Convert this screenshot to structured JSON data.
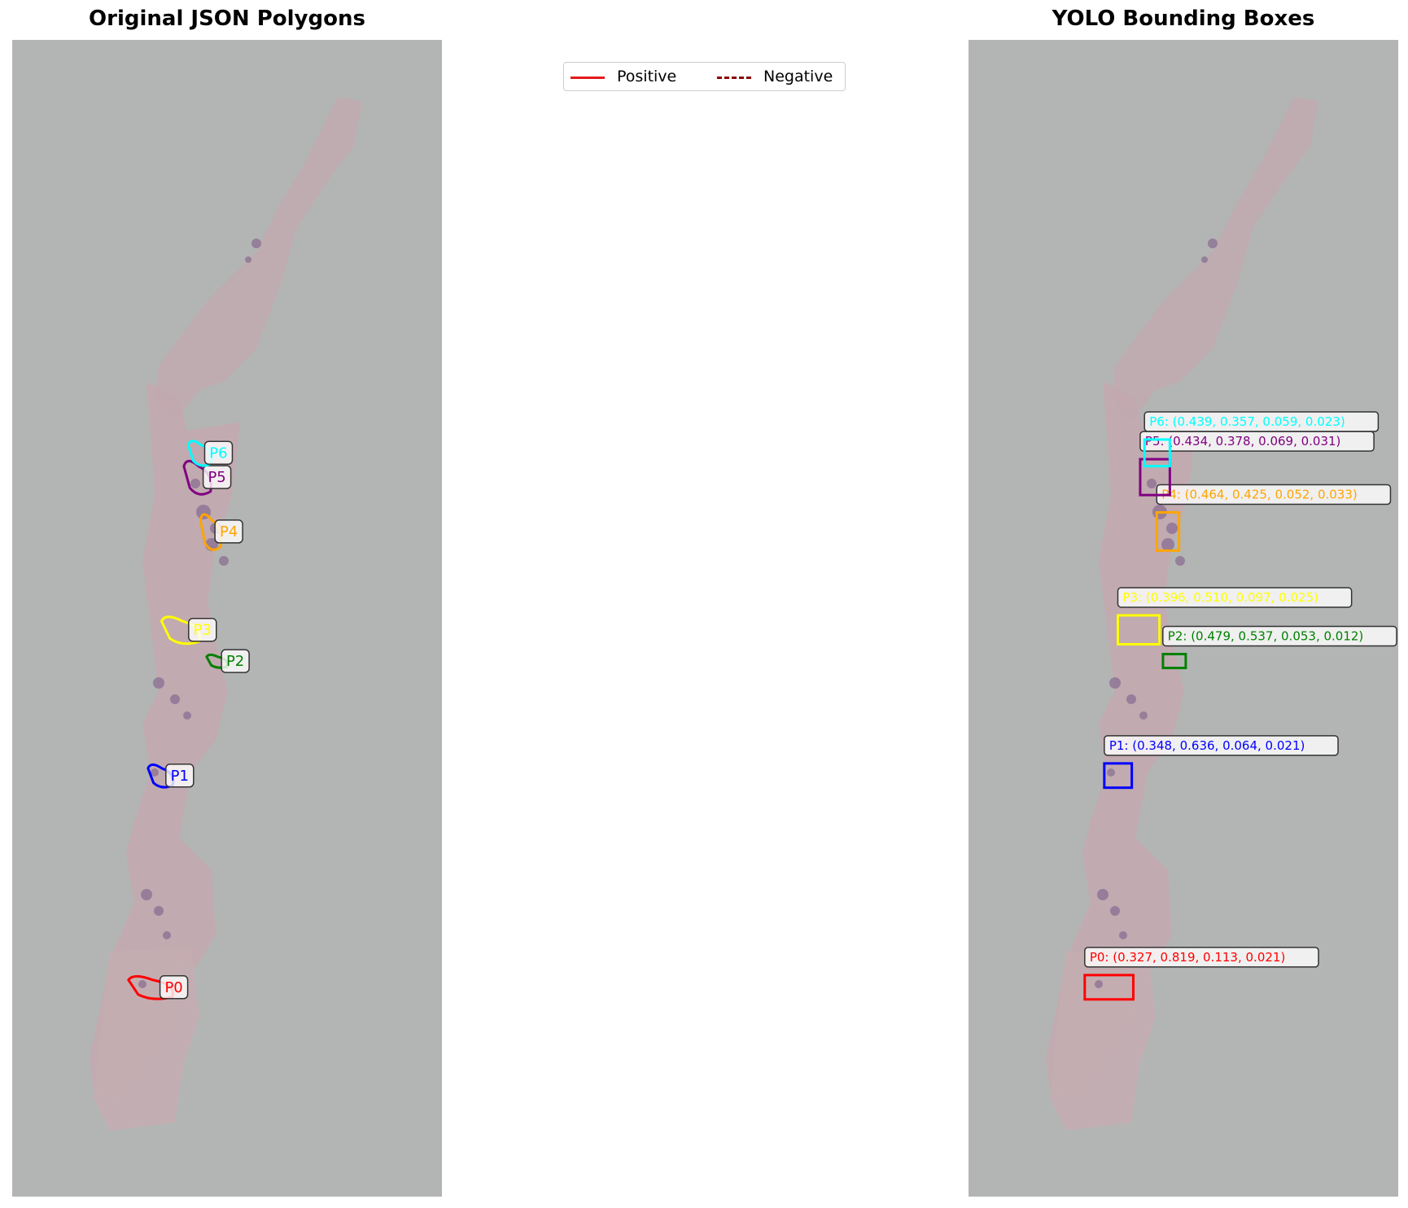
{
  "left_panel": {
    "title": "Original JSON Polygons"
  },
  "right_panel": {
    "title": "YOLO Bounding Boxes"
  },
  "legend": {
    "items": [
      {
        "label": "Positive",
        "color": "#e31a1c",
        "style": "solid"
      },
      {
        "label": "Negative",
        "color": "#8b0000",
        "style": "dashed"
      }
    ]
  },
  "annotations": [
    {
      "id": "P0",
      "color": "#ff0000",
      "yolo": [
        0.327,
        0.819,
        0.113,
        0.021
      ],
      "box_label": "P0: (0.327, 0.819, 0.113, 0.021)"
    },
    {
      "id": "P1",
      "color": "#0000ff",
      "yolo": [
        0.348,
        0.636,
        0.064,
        0.021
      ],
      "box_label": "P1: (0.348, 0.636, 0.064, 0.021)"
    },
    {
      "id": "P2",
      "color": "#008000",
      "yolo": [
        0.479,
        0.537,
        0.053,
        0.012
      ],
      "box_label": "P2: (0.479, 0.537, 0.053, 0.012)"
    },
    {
      "id": "P3",
      "color": "#ffff00",
      "yolo": [
        0.396,
        0.51,
        0.097,
        0.025
      ],
      "box_label": "P3: (0.396, 0.510, 0.097, 0.025)"
    },
    {
      "id": "P4",
      "color": "#ffa500",
      "yolo": [
        0.464,
        0.425,
        0.052,
        0.033
      ],
      "box_label": "P4: (0.464, 0.425, 0.052, 0.033)"
    },
    {
      "id": "P5",
      "color": "#800080",
      "yolo": [
        0.434,
        0.378,
        0.069,
        0.031
      ],
      "box_label": "P5: (0.434, 0.378, 0.069, 0.031)"
    },
    {
      "id": "P6",
      "color": "#00ffff",
      "yolo": [
        0.439,
        0.357,
        0.059,
        0.023
      ],
      "box_label": "P6: (0.439, 0.357, 0.059, 0.023)"
    }
  ]
}
